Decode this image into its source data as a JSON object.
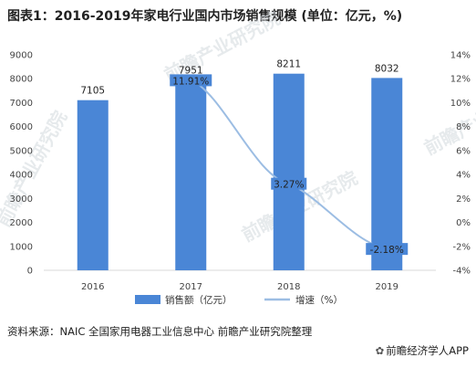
{
  "title": "图表1：2016-2019年家电行业国内市场销售规模 (单位：亿元，%)",
  "source": "资料来源：NAIC 全国家用电器工业信息中心 前瞻产业研究院整理",
  "brand": "前瞻经济学人APP",
  "watermark": "前瞻产业研究院",
  "colors": {
    "bar": "#4a86d6",
    "line": "#9cbde3",
    "axis_text": "#444444"
  },
  "chart_data": {
    "type": "bar",
    "title": "图表1：2016-2019年家电行业国内市场销售规模 (单位：亿元，%)",
    "categories": [
      "2016",
      "2017",
      "2018",
      "2019"
    ],
    "series": [
      {
        "name": "销售额（亿元）",
        "type": "bar",
        "axis": "left",
        "values": [
          7105,
          7951,
          8211,
          8032
        ],
        "labels": [
          "7105",
          "7951",
          "8211",
          "8032"
        ]
      },
      {
        "name": "增速（%）",
        "type": "line",
        "axis": "right",
        "values": [
          null,
          11.91,
          3.27,
          -2.18
        ],
        "labels": [
          "",
          "11.91%",
          "3.27%",
          "-2.18%"
        ]
      }
    ],
    "ylim": [
      0,
      9000
    ],
    "yticks": [
      "0",
      "1000",
      "2000",
      "3000",
      "4000",
      "5000",
      "6000",
      "7000",
      "8000",
      "9000"
    ],
    "y2lim": [
      -4,
      14
    ],
    "y2ticks": [
      "-4%",
      "-2%",
      "0%",
      "2%",
      "4%",
      "6%",
      "8%",
      "10%",
      "12%",
      "14%"
    ],
    "grid": false,
    "legend_position": "bottom"
  }
}
